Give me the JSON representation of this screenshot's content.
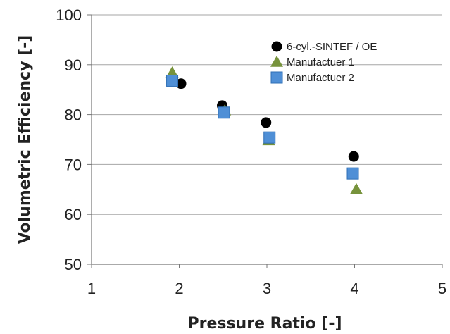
{
  "chart_data": {
    "type": "scatter",
    "title": "",
    "xlabel": "Pressure Ratio [-]",
    "ylabel": "Volumetric  Efficiency [-]",
    "xlim": [
      1,
      5
    ],
    "ylim": [
      50,
      100
    ],
    "xticks": [
      "1",
      "2",
      "3",
      "4",
      "5"
    ],
    "yticks": [
      "50",
      "60",
      "70",
      "80",
      "90",
      "100"
    ],
    "grid": "horizontal",
    "legend_position": "top-right",
    "series": [
      {
        "name": "6-cyl.-SINTEF / OE",
        "marker": "circle",
        "color": "#000000",
        "points": [
          {
            "x": 2.02,
            "y": 86.2
          },
          {
            "x": 2.49,
            "y": 81.8
          },
          {
            "x": 2.99,
            "y": 78.4
          },
          {
            "x": 3.99,
            "y": 71.6
          }
        ]
      },
      {
        "name": "Manufactuer 1",
        "marker": "triangle",
        "color": "#77933c",
        "points": [
          {
            "x": 1.92,
            "y": 88.4
          },
          {
            "x": 2.52,
            "y": 80.8
          },
          {
            "x": 3.02,
            "y": 74.8
          },
          {
            "x": 4.02,
            "y": 65.0
          }
        ]
      },
      {
        "name": "Manufactuer 2",
        "marker": "square",
        "color": "#4f8fd6",
        "points": [
          {
            "x": 1.92,
            "y": 86.8
          },
          {
            "x": 2.51,
            "y": 80.4
          },
          {
            "x": 3.03,
            "y": 75.4
          },
          {
            "x": 3.98,
            "y": 68.2
          }
        ]
      }
    ]
  }
}
